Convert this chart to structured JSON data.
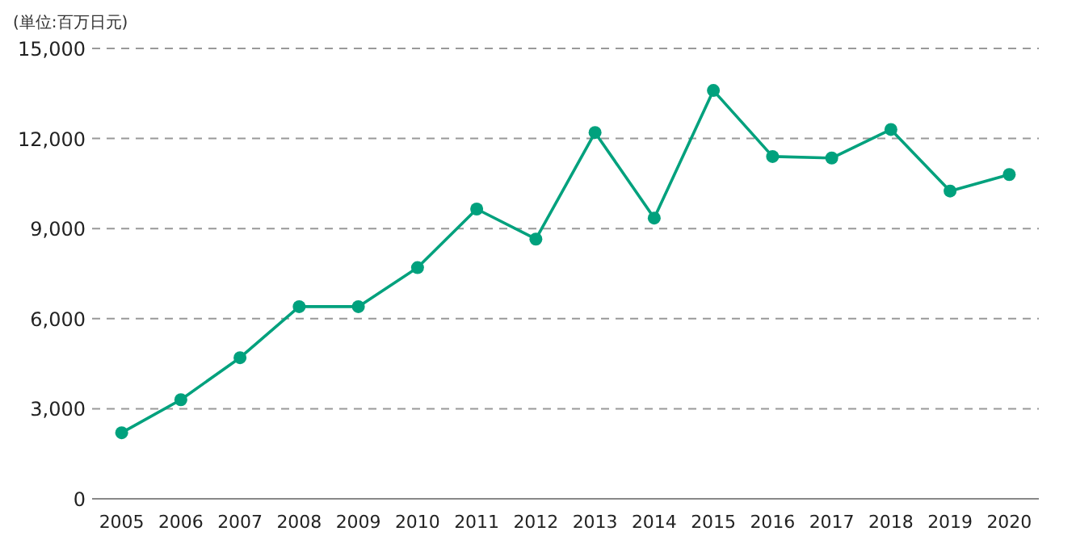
{
  "chart_data": {
    "type": "line",
    "ylabel": "(単位:百万日元)",
    "categories": [
      "2005",
      "2006",
      "2007",
      "2008",
      "2009",
      "2010",
      "2011",
      "2012",
      "2013",
      "2014",
      "2015",
      "2016",
      "2017",
      "2018",
      "2019",
      "2020"
    ],
    "series": [
      {
        "color": "#00a17d",
        "values": [
          2200,
          3300,
          4700,
          6400,
          6400,
          7700,
          9650,
          8650,
          12200,
          9350,
          13600,
          11400,
          11350,
          12300,
          10250,
          10800
        ]
      }
    ],
    "ylim": [
      0,
      15000
    ],
    "yticks": [
      {
        "value": 0,
        "label": "0"
      },
      {
        "value": 3000,
        "label": "3,000"
      },
      {
        "value": 6000,
        "label": "6,000"
      },
      {
        "value": 9000,
        "label": "9,000"
      },
      {
        "value": 12000,
        "label": "12,000"
      },
      {
        "value": 15000,
        "label": "15,000"
      }
    ],
    "grid": "y",
    "marker": "circle",
    "line_style": "solid"
  }
}
